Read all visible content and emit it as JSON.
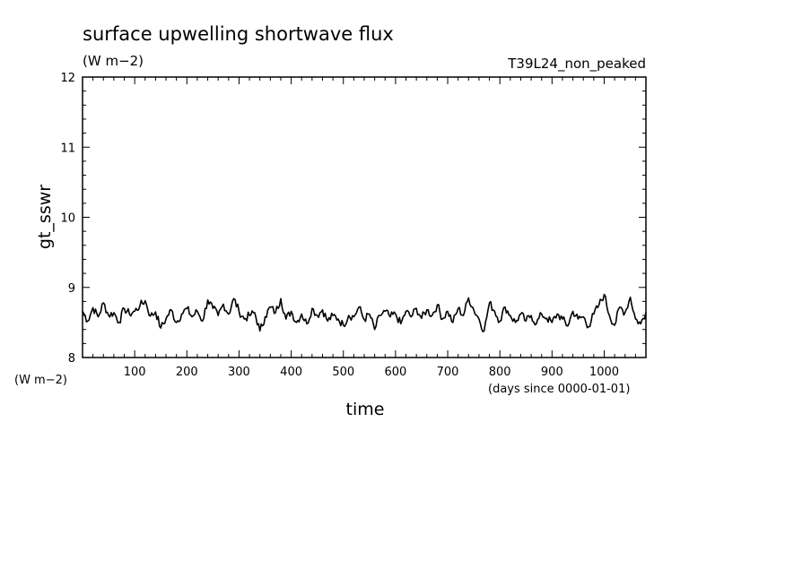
{
  "chart_data": {
    "type": "line",
    "title": "surface upwelling shortwave flux",
    "units": "(W m−2)",
    "experiment": "T39L24_non_peaked",
    "xlabel": "time",
    "xunits": "(days since 0000-01-01)",
    "ylabel": "gt_sswr",
    "yunits": "(W m−2)",
    "xlim": [
      0,
      1080
    ],
    "ylim": [
      8,
      12
    ],
    "xticks": [
      100,
      200,
      300,
      400,
      500,
      600,
      700,
      800,
      900,
      1000
    ],
    "yticks": [
      8,
      9,
      10,
      11,
      12
    ],
    "grid": false,
    "series": [
      {
        "x": [
          0,
          10,
          20,
          30,
          40,
          50,
          60,
          70,
          80,
          90,
          100,
          110,
          120,
          130,
          140,
          150,
          160,
          170,
          180,
          190,
          200,
          210,
          220,
          230,
          240,
          250,
          260,
          270,
          280,
          290,
          300,
          310,
          320,
          330,
          340,
          350,
          360,
          370,
          380,
          390,
          400,
          410,
          420,
          430,
          440,
          450,
          460,
          470,
          480,
          490,
          500,
          510,
          520,
          530,
          540,
          550,
          560,
          570,
          580,
          590,
          600,
          610,
          620,
          630,
          640,
          650,
          660,
          670,
          680,
          690,
          700,
          710,
          720,
          730,
          740,
          750,
          760,
          770,
          780,
          790,
          800,
          810,
          820,
          830,
          840,
          850,
          860,
          870,
          880,
          890,
          900,
          910,
          920,
          930,
          940,
          950,
          960,
          970,
          980,
          990,
          1000,
          1010,
          1020,
          1030,
          1040,
          1050,
          1060,
          1070,
          1080
        ],
        "values": [
          8.66,
          8.52,
          8.71,
          8.58,
          8.78,
          8.6,
          8.64,
          8.5,
          8.7,
          8.62,
          8.66,
          8.74,
          8.81,
          8.59,
          8.65,
          8.42,
          8.55,
          8.68,
          8.5,
          8.62,
          8.7,
          8.58,
          8.66,
          8.52,
          8.82,
          8.7,
          8.6,
          8.76,
          8.62,
          8.84,
          8.66,
          8.55,
          8.6,
          8.64,
          8.38,
          8.58,
          8.72,
          8.64,
          8.84,
          8.55,
          8.66,
          8.5,
          8.62,
          8.48,
          8.7,
          8.6,
          8.68,
          8.52,
          8.6,
          8.55,
          8.46,
          8.6,
          8.58,
          8.72,
          8.54,
          8.62,
          8.4,
          8.6,
          8.66,
          8.58,
          8.62,
          8.48,
          8.66,
          8.58,
          8.7,
          8.56,
          8.68,
          8.6,
          8.75,
          8.55,
          8.66,
          8.5,
          8.7,
          8.6,
          8.85,
          8.68,
          8.55,
          8.38,
          8.78,
          8.66,
          8.52,
          8.72,
          8.6,
          8.5,
          8.62,
          8.52,
          8.6,
          8.48,
          8.62,
          8.56,
          8.5,
          8.62,
          8.55,
          8.45,
          8.66,
          8.55,
          8.58,
          8.44,
          8.62,
          8.75,
          8.9,
          8.6,
          8.46,
          8.72,
          8.64,
          8.86,
          8.55,
          8.48,
          8.64
        ]
      }
    ]
  }
}
